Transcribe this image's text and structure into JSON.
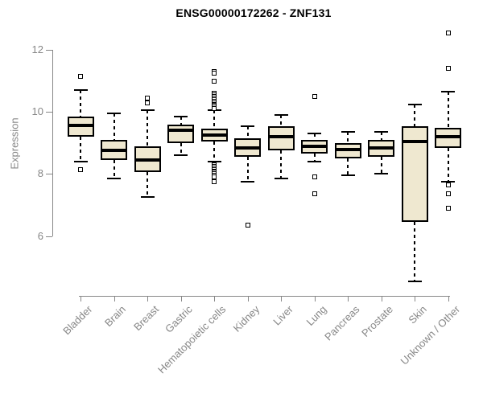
{
  "chart_data": {
    "type": "boxplot",
    "title": "ENSG00000172262 - ZNF131",
    "xlabel": "",
    "ylabel": "Expression",
    "ylim": [
      6,
      12
    ],
    "yticks": [
      6,
      8,
      10,
      12
    ],
    "grid": false,
    "legend": "none",
    "categories": [
      "Bladder",
      "Brain",
      "Breast",
      "Gastric",
      "Hematopoietic cells",
      "Kidney",
      "Liver",
      "Lung",
      "Pancreas",
      "Prostate",
      "Skin",
      "Unknown / Other"
    ],
    "series": [
      {
        "name": "Bladder",
        "low": 8.4,
        "q1": 9.2,
        "median": 9.57,
        "q3": 9.85,
        "high": 10.7,
        "outliers": [
          11.15,
          8.15
        ]
      },
      {
        "name": "Brain",
        "low": 7.85,
        "q1": 8.45,
        "median": 8.77,
        "q3": 9.1,
        "high": 9.95,
        "outliers": []
      },
      {
        "name": "Breast",
        "low": 7.25,
        "q1": 8.05,
        "median": 8.45,
        "q3": 8.9,
        "high": 10.05,
        "outliers": [
          10.45,
          10.3
        ]
      },
      {
        "name": "Gastric",
        "low": 8.6,
        "q1": 9.0,
        "median": 9.4,
        "q3": 9.6,
        "high": 9.85,
        "outliers": []
      },
      {
        "name": "Hematopoietic cells",
        "low": 8.4,
        "q1": 9.05,
        "median": 9.25,
        "q3": 9.45,
        "high": 10.05,
        "outliers": [
          11.3,
          11.25,
          11.0,
          10.6,
          10.55,
          10.5,
          10.45,
          10.4,
          10.35,
          10.3,
          10.25,
          10.2,
          10.15,
          10.1,
          8.3,
          8.25,
          8.2,
          8.15,
          8.1,
          8.05,
          8.0,
          7.95,
          7.9,
          7.75
        ]
      },
      {
        "name": "Kidney",
        "low": 7.75,
        "q1": 8.55,
        "median": 8.85,
        "q3": 9.15,
        "high": 9.55,
        "outliers": [
          6.35
        ]
      },
      {
        "name": "Liver",
        "low": 7.85,
        "q1": 8.75,
        "median": 9.2,
        "q3": 9.55,
        "high": 9.9,
        "outliers": []
      },
      {
        "name": "Lung",
        "low": 8.4,
        "q1": 8.65,
        "median": 8.9,
        "q3": 9.1,
        "high": 9.3,
        "outliers": [
          10.5,
          7.9,
          7.35
        ]
      },
      {
        "name": "Pancreas",
        "low": 7.95,
        "q1": 8.5,
        "median": 8.8,
        "q3": 9.0,
        "high": 9.35,
        "outliers": []
      },
      {
        "name": "Prostate",
        "low": 8.0,
        "q1": 8.55,
        "median": 8.85,
        "q3": 9.1,
        "high": 9.35,
        "outliers": []
      },
      {
        "name": "Skin",
        "low": 4.55,
        "q1": 6.45,
        "median": 9.05,
        "q3": 9.55,
        "high": 10.25,
        "outliers": []
      },
      {
        "name": "Unknown / Other",
        "low": 7.75,
        "q1": 8.85,
        "median": 9.2,
        "q3": 9.5,
        "high": 10.65,
        "outliers": [
          12.55,
          11.4,
          7.65,
          7.35,
          6.9
        ]
      }
    ]
  },
  "colors": {
    "background": "#FFFFFF",
    "box_fill": "#EFE8D0",
    "box_stroke": "#000000",
    "median": "#000000",
    "axis": "#878787",
    "title": "#000000"
  }
}
